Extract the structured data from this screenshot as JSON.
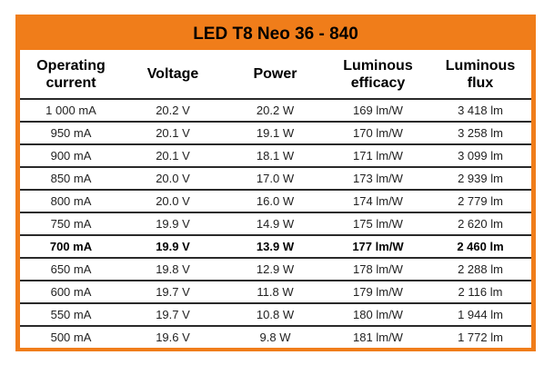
{
  "title": "LED T8 Neo 36 - 840",
  "headers": [
    {
      "line1": "Operating",
      "line2": "current"
    },
    {
      "line1": "Voltage",
      "line2": ""
    },
    {
      "line1": "Power",
      "line2": ""
    },
    {
      "line1": "Luminous",
      "line2": "efficacy"
    },
    {
      "line1": "Luminous",
      "line2": "flux"
    }
  ],
  "rows": [
    {
      "current": "1 000 mA",
      "voltage": "20.2 V",
      "power": "20.2 W",
      "efficacy": "169 lm/W",
      "flux": "3 418 lm",
      "bold": false
    },
    {
      "current": "950 mA",
      "voltage": "20.1 V",
      "power": "19.1 W",
      "efficacy": "170 lm/W",
      "flux": "3 258 lm",
      "bold": false
    },
    {
      "current": "900 mA",
      "voltage": "20.1 V",
      "power": "18.1 W",
      "efficacy": "171 lm/W",
      "flux": "3 099 lm",
      "bold": false
    },
    {
      "current": "850 mA",
      "voltage": "20.0 V",
      "power": "17.0 W",
      "efficacy": "173 lm/W",
      "flux": "2 939 lm",
      "bold": false
    },
    {
      "current": "800 mA",
      "voltage": "20.0 V",
      "power": "16.0 W",
      "efficacy": "174 lm/W",
      "flux": "2 779 lm",
      "bold": false
    },
    {
      "current": "750 mA",
      "voltage": "19.9 V",
      "power": "14.9 W",
      "efficacy": "175 lm/W",
      "flux": "2 620 lm",
      "bold": false
    },
    {
      "current": "700 mA",
      "voltage": "19.9 V",
      "power": "13.9 W",
      "efficacy": "177 lm/W",
      "flux": "2 460 lm",
      "bold": true
    },
    {
      "current": "650 mA",
      "voltage": "19.8 V",
      "power": "12.9 W",
      "efficacy": "178 lm/W",
      "flux": "2 288 lm",
      "bold": false
    },
    {
      "current": "600 mA",
      "voltage": "19.7 V",
      "power": "11.8 W",
      "efficacy": "179 lm/W",
      "flux": "2 116 lm",
      "bold": false
    },
    {
      "current": "550 mA",
      "voltage": "19.7 V",
      "power": "10.8 W",
      "efficacy": "180 lm/W",
      "flux": "1 944 lm",
      "bold": false
    },
    {
      "current": "500 mA",
      "voltage": "19.6 V",
      "power": "9.8 W",
      "efficacy": "181 lm/W",
      "flux": "1 772 lm",
      "bold": false
    }
  ],
  "colors": {
    "frame": "#f07d1a",
    "rule": "#2a2a2a",
    "background": "#ffffff"
  }
}
